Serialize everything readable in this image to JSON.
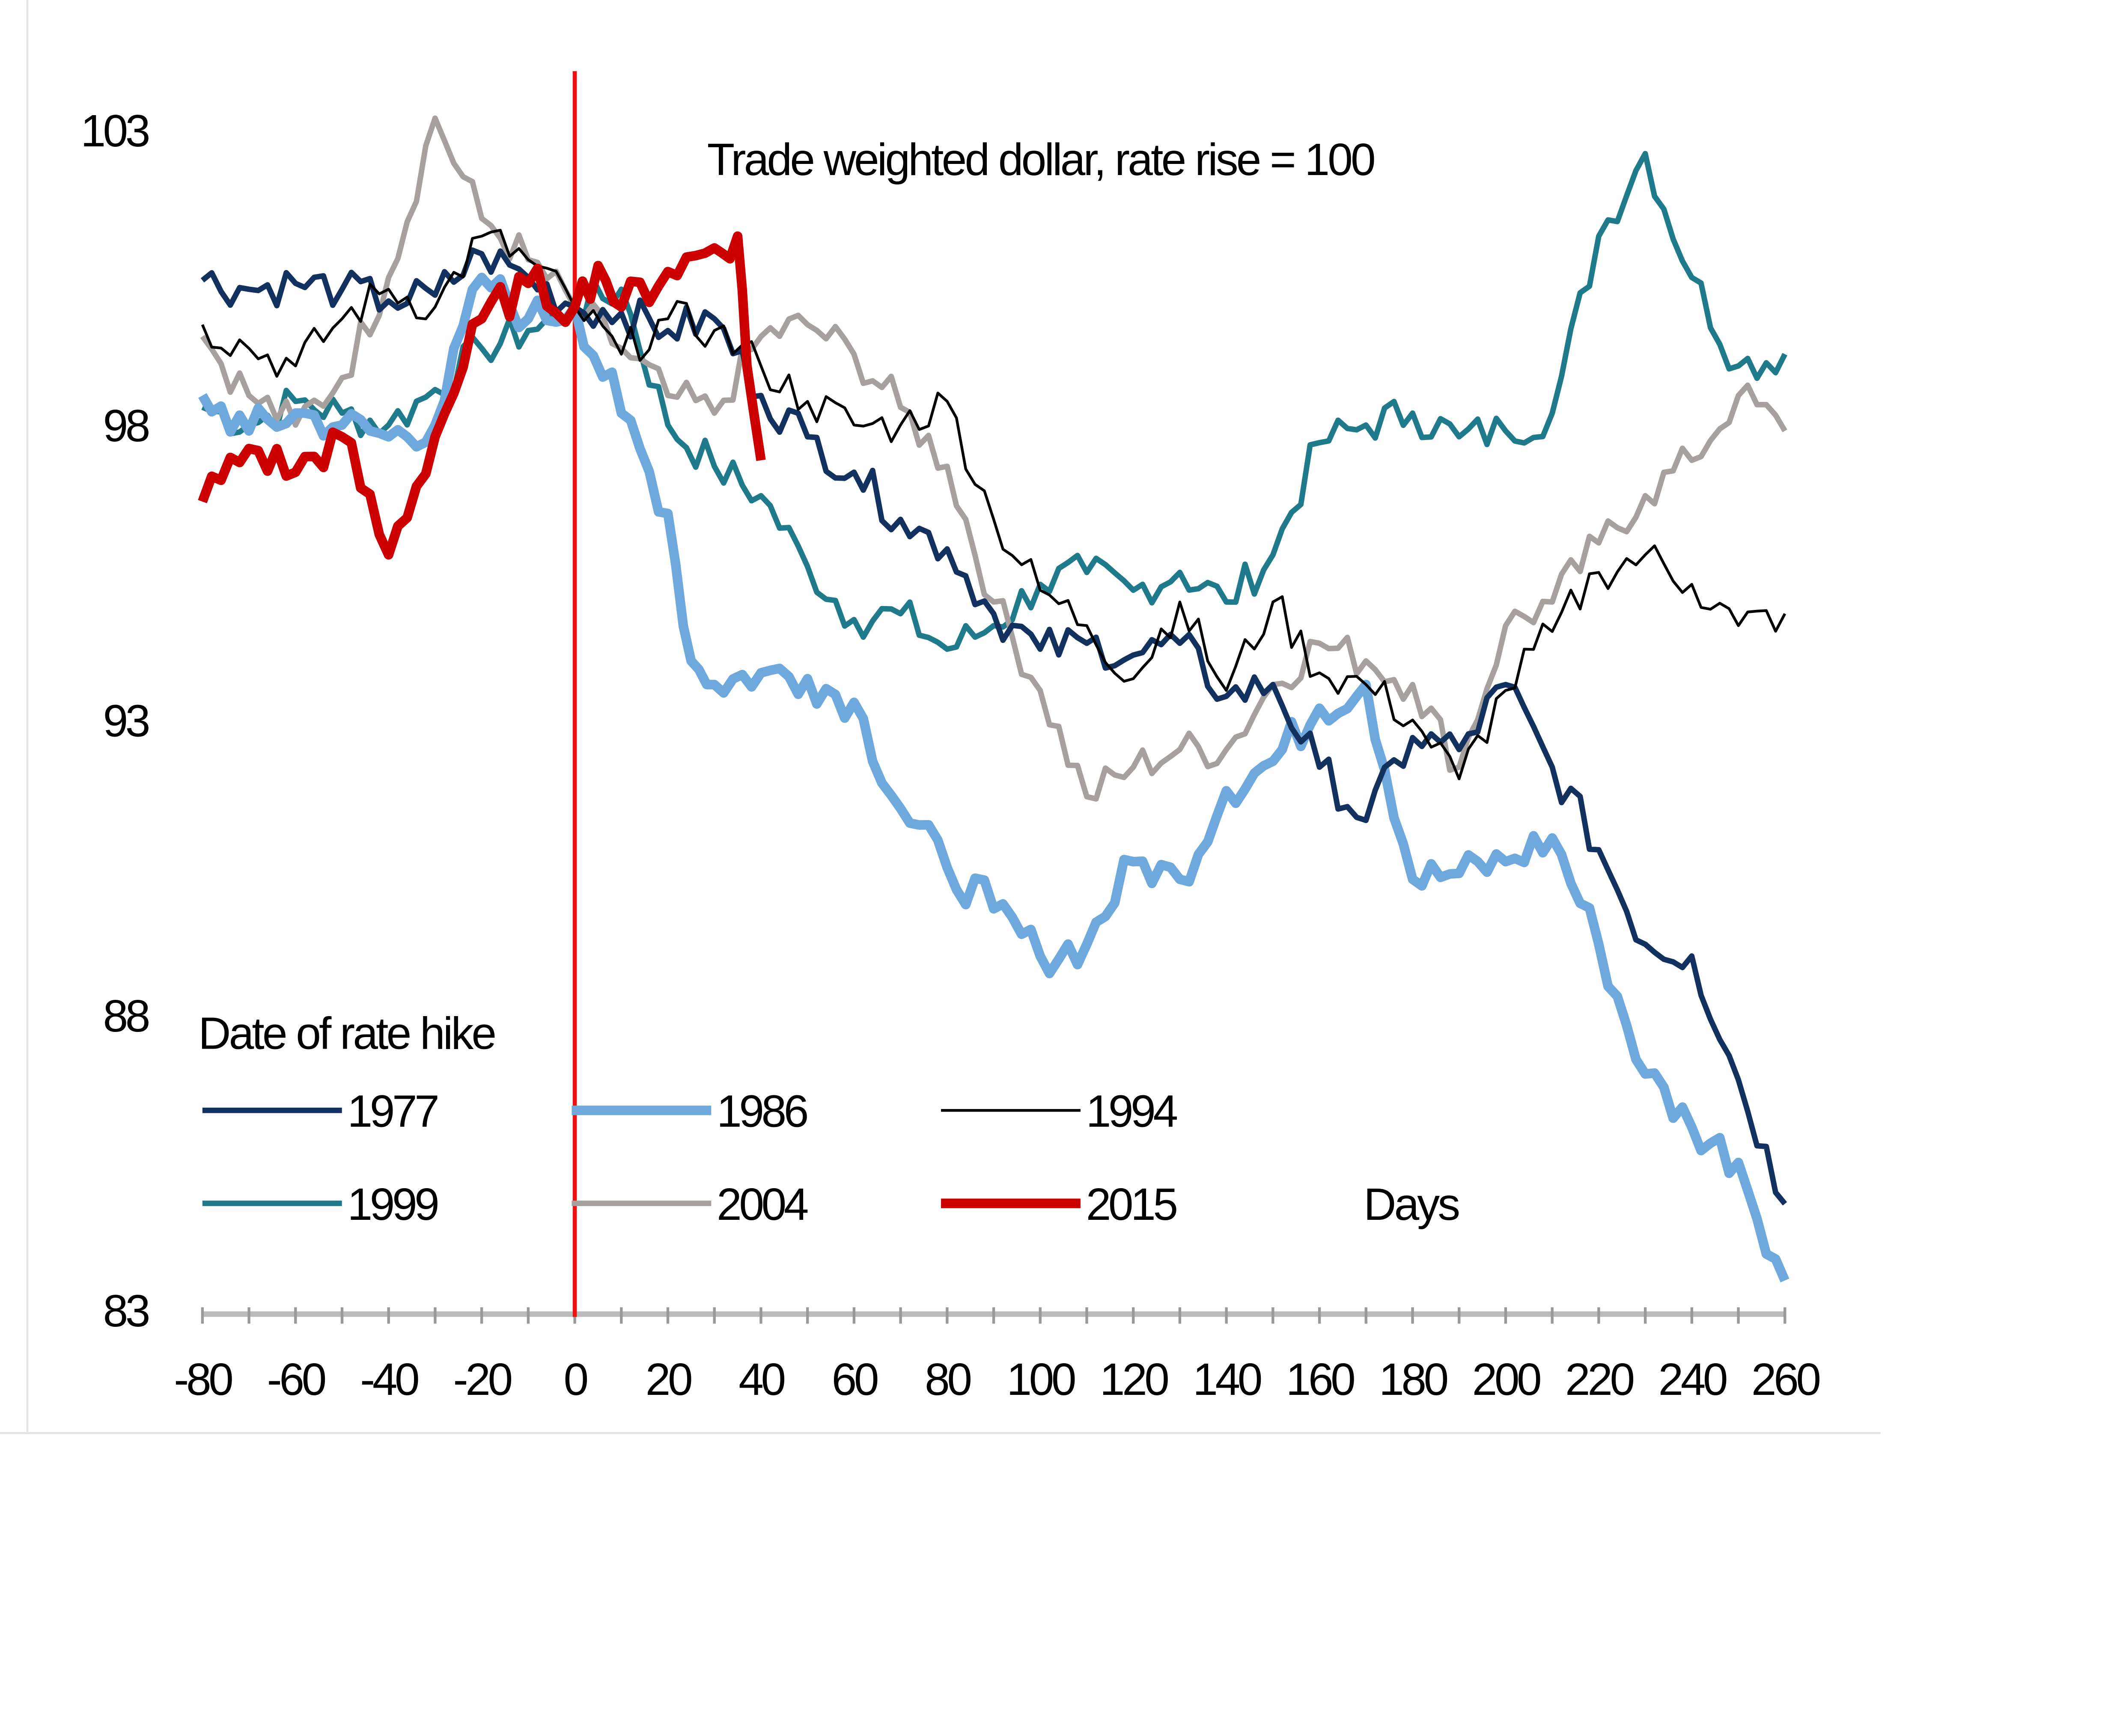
{
  "chart_data": {
    "type": "line",
    "title": "Trade weighted dollar, rate rise = 100",
    "xlabel": "Days",
    "ylabel": "",
    "xlim": [
      -80,
      260
    ],
    "ylim": [
      83,
      103
    ],
    "x_ticks": [
      "-80",
      "-60",
      "-40",
      "-20",
      "0",
      "20",
      "40",
      "60",
      "80",
      "100",
      "120",
      "140",
      "160",
      "180",
      "200",
      "220",
      "240",
      "260"
    ],
    "y_ticks": [
      "103",
      "98",
      "93",
      "88",
      "83"
    ],
    "legend_title": "Date of rate hike",
    "legend_position": "bottom-left",
    "marker_line_day": 0,
    "series": [
      {
        "name": "1977",
        "color": "#12315e",
        "width": 4,
        "x": [
          -80,
          -70,
          -60,
          -50,
          -40,
          -30,
          -20,
          -10,
          0,
          10,
          20,
          30,
          40,
          50,
          60,
          70,
          80,
          90,
          100,
          110,
          120,
          130,
          140,
          150,
          160,
          170,
          180,
          190,
          200,
          210,
          220,
          230,
          240,
          250,
          260
        ],
        "y": [
          100.45,
          100.3,
          100.4,
          100.3,
          100.1,
          100.2,
          100.9,
          100.5,
          100,
          99.9,
          99.6,
          99.8,
          98.5,
          97.8,
          97.2,
          96.4,
          95.9,
          94.8,
          94.2,
          94.3,
          94.1,
          94.3,
          93.4,
          93.6,
          92.2,
          91.3,
          92.7,
          92.5,
          93.6,
          92.2,
          90.8,
          89.2,
          89.0,
          86.9,
          84.8
        ]
      },
      {
        "name": "1986",
        "color": "#6fa8dc",
        "width": 7,
        "x": [
          -80,
          -70,
          -60,
          -50,
          -40,
          -30,
          -20,
          -10,
          0,
          10,
          20,
          25,
          30,
          40,
          50,
          60,
          70,
          80,
          90,
          100,
          110,
          120,
          130,
          140,
          150,
          160,
          170,
          180,
          190,
          200,
          210,
          220,
          230,
          240,
          250,
          260
        ],
        "y": [
          98.5,
          97.9,
          98.2,
          98.0,
          97.8,
          98.0,
          100.5,
          99.8,
          100,
          98.2,
          96.5,
          94.0,
          93.6,
          93.8,
          93.7,
          93.3,
          91.5,
          90.5,
          89.8,
          89.0,
          89.2,
          90.6,
          90.3,
          91.8,
          92.3,
          93.2,
          93.6,
          90.3,
          90.4,
          90.6,
          91.0,
          89.2,
          87.0,
          86.1,
          85.5,
          83.5
        ]
      },
      {
        "name": "1994",
        "color": "#000000",
        "width": 2,
        "x": [
          -80,
          -70,
          -60,
          -50,
          -40,
          -30,
          -20,
          -10,
          0,
          10,
          20,
          30,
          40,
          50,
          60,
          70,
          80,
          90,
          100,
          110,
          120,
          130,
          140,
          150,
          160,
          170,
          180,
          190,
          200,
          210,
          220,
          230,
          240,
          250,
          260
        ],
        "y": [
          99.7,
          99.3,
          99.0,
          99.8,
          100.3,
          100.0,
          101.2,
          100.8,
          100,
          99.2,
          99.8,
          99.6,
          99.0,
          98.4,
          98.0,
          98.0,
          98.4,
          96.4,
          95.2,
          94.6,
          93.7,
          95.0,
          93.5,
          95.0,
          93.8,
          93.6,
          93.0,
          92.0,
          93.5,
          94.5,
          95.5,
          95.8,
          95.3,
          94.6,
          94.8
        ]
      },
      {
        "name": "1999",
        "color": "#1f7a8c",
        "width": 4,
        "x": [
          -80,
          -70,
          -60,
          -50,
          -40,
          -30,
          -20,
          -10,
          0,
          10,
          20,
          30,
          40,
          50,
          60,
          70,
          80,
          90,
          100,
          110,
          120,
          130,
          140,
          150,
          160,
          170,
          180,
          190,
          200,
          210,
          220,
          230,
          240,
          250,
          260
        ],
        "y": [
          98.3,
          98.0,
          98.4,
          98.2,
          98.0,
          98.6,
          99.3,
          99.6,
          100,
          100.3,
          98.0,
          97.3,
          96.8,
          95.6,
          94.7,
          94.8,
          94.2,
          94.6,
          95.3,
          95.5,
          95.2,
          95.5,
          95.0,
          95.8,
          97.7,
          98.0,
          98.2,
          97.8,
          97.9,
          98.2,
          101.2,
          102.6,
          100.5,
          99.0,
          99.2
        ]
      },
      {
        "name": "2004",
        "color": "#a6a09e",
        "width": 4,
        "x": [
          -80,
          -70,
          -60,
          -50,
          -40,
          -30,
          -20,
          -10,
          0,
          10,
          20,
          30,
          40,
          50,
          60,
          70,
          80,
          90,
          100,
          110,
          120,
          130,
          140,
          150,
          160,
          170,
          180,
          190,
          200,
          210,
          220,
          230,
          240,
          250,
          260
        ],
        "y": [
          99.5,
          98.5,
          98.0,
          98.8,
          100.5,
          103.2,
          101.5,
          100.8,
          100,
          99.3,
          98.5,
          98.2,
          99.5,
          99.7,
          99.2,
          98.3,
          97.3,
          95.0,
          93.5,
          91.7,
          92.2,
          92.5,
          92.5,
          93.6,
          94.3,
          94.0,
          93.6,
          92.2,
          94.6,
          95.0,
          96.0,
          96.8,
          97.4,
          98.5,
          97.9
        ]
      },
      {
        "name": "2015",
        "color": "#cc0000",
        "width": 7,
        "x": [
          -80,
          -70,
          -60,
          -50,
          -40,
          -30,
          -20,
          -10,
          0,
          5,
          10,
          20,
          30,
          35,
          37,
          40
        ],
        "y": [
          96.7,
          97.6,
          97.2,
          97.8,
          95.8,
          97.8,
          99.8,
          100.4,
          100,
          100.7,
          100.0,
          100.6,
          101.0,
          101.2,
          99.0,
          97.4
        ]
      }
    ]
  }
}
